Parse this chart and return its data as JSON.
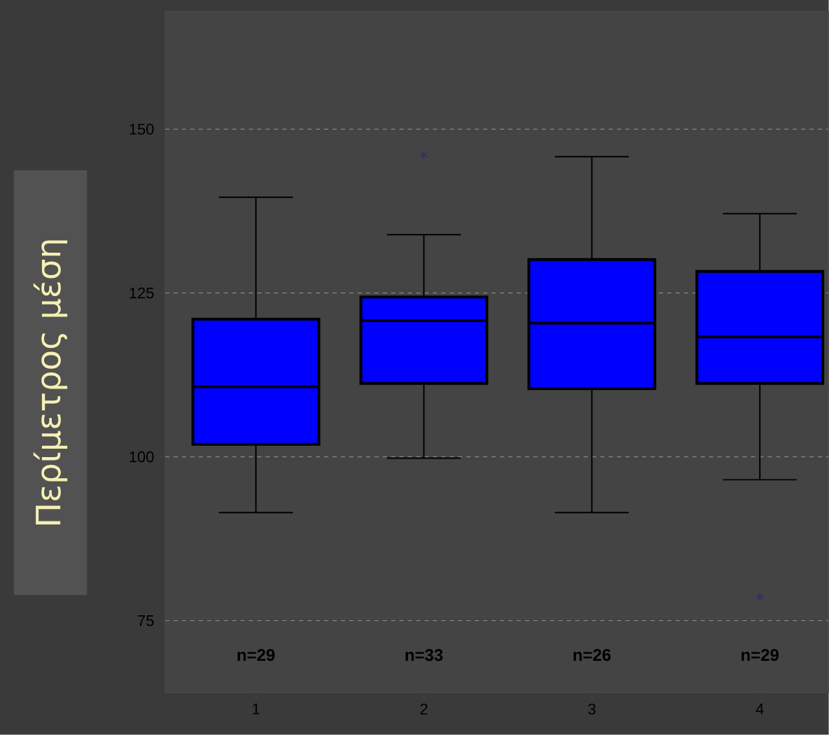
{
  "chart_data": {
    "type": "box",
    "ylabel": "Περίμετρος μέση",
    "categories": [
      "1",
      "2",
      "3",
      "4"
    ],
    "boxes": [
      {
        "low": 91.5,
        "q1": 101.9,
        "median": 110.7,
        "q3": 121.0,
        "high": 139.6
      },
      {
        "low": 99.8,
        "q1": 111.2,
        "median": 120.8,
        "q3": 124.4,
        "high": 133.9,
        "outliers": [
          146.1
        ]
      },
      {
        "low": 91.5,
        "q1": 110.4,
        "median": 120.4,
        "q3": 130.1,
        "high": 145.8
      },
      {
        "low": 96.5,
        "q1": 111.2,
        "median": 118.3,
        "q3": 128.3,
        "high": 137.1,
        "outliers": [
          78.6
        ]
      }
    ],
    "color": "#0000ff",
    "ylim": [
      64,
      168
    ],
    "yticks": [
      75,
      100,
      125,
      150
    ],
    "grid": "y",
    "marker": "star",
    "annotations": [
      "n=29",
      "n=33",
      "n=26",
      "n=29"
    ]
  }
}
